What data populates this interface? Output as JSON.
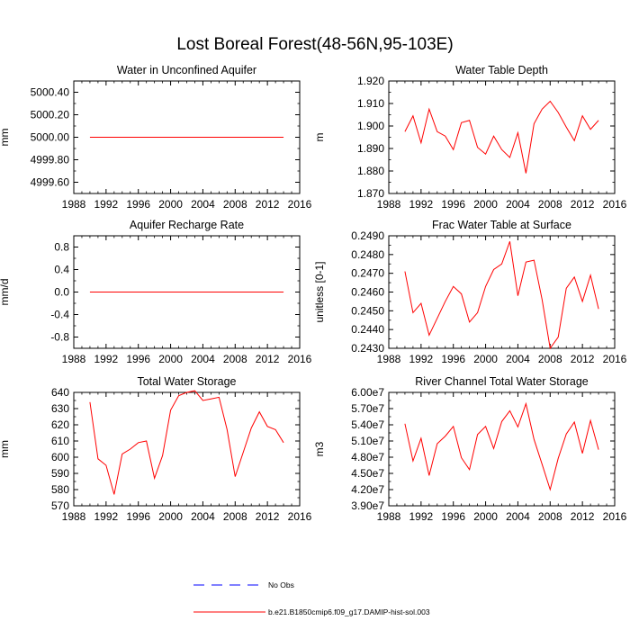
{
  "title": "Lost Boreal Forest(48-56N,95-103E)",
  "legend": {
    "items": [
      {
        "label": "No Obs",
        "color": "#0000ff",
        "style": "dashed"
      },
      {
        "label": "b.e21.B1850cmip6.f09_g17.DAMIP-hist-sol.003",
        "color": "#ff0000",
        "style": "solid"
      }
    ]
  },
  "chart_data": [
    {
      "type": "line",
      "title": "Water in Unconfined Aquifer",
      "xlabel": "",
      "ylabel": "mm",
      "xlim": [
        1988,
        2016
      ],
      "ylim": [
        4999.5,
        5000.5
      ],
      "xticks": [
        1988,
        1992,
        1996,
        2000,
        2004,
        2008,
        2012,
        2016
      ],
      "yticks": [
        4999.6,
        4999.8,
        5000.0,
        5000.2,
        5000.4
      ],
      "ytick_labels": [
        "4999.60",
        "4999.80",
        "5000.00",
        "5000.20",
        "5000.40"
      ],
      "x": [
        1990,
        1991,
        1992,
        1993,
        1994,
        1995,
        1996,
        1997,
        1998,
        1999,
        2000,
        2001,
        2002,
        2003,
        2004,
        2005,
        2006,
        2007,
        2008,
        2009,
        2010,
        2011,
        2012,
        2013,
        2014
      ],
      "series": [
        {
          "color": "#ff0000",
          "values": [
            5000,
            5000,
            5000,
            5000,
            5000,
            5000,
            5000,
            5000,
            5000,
            5000,
            5000,
            5000,
            5000,
            5000,
            5000,
            5000,
            5000,
            5000,
            5000,
            5000,
            5000,
            5000,
            5000,
            5000,
            5000
          ]
        }
      ]
    },
    {
      "type": "line",
      "title": "Water Table Depth",
      "xlabel": "",
      "ylabel": "m",
      "xlim": [
        1988,
        2016
      ],
      "ylim": [
        1.87,
        1.92
      ],
      "xticks": [
        1988,
        1992,
        1996,
        2000,
        2004,
        2008,
        2012,
        2016
      ],
      "yticks": [
        1.87,
        1.88,
        1.89,
        1.9,
        1.91,
        1.92
      ],
      "ytick_labels": [
        "1.870",
        "1.880",
        "1.890",
        "1.900",
        "1.910",
        "1.920"
      ],
      "x": [
        1990,
        1991,
        1992,
        1993,
        1994,
        1995,
        1996,
        1997,
        1998,
        1999,
        2000,
        2001,
        2002,
        2003,
        2004,
        2005,
        2006,
        2007,
        2008,
        2009,
        2010,
        2011,
        2012,
        2013,
        2014
      ],
      "series": [
        {
          "color": "#ff0000",
          "values": [
            1.8975,
            1.9045,
            1.8925,
            1.9075,
            1.8975,
            1.8955,
            1.8895,
            1.9015,
            1.9025,
            1.8905,
            1.8875,
            1.8955,
            1.8895,
            1.886,
            1.897,
            1.879,
            1.901,
            1.9075,
            1.911,
            1.906,
            1.8995,
            1.8935,
            1.9045,
            1.8985,
            1.9025
          ]
        }
      ]
    },
    {
      "type": "line",
      "title": "Aquifer Recharge Rate",
      "xlabel": "",
      "ylabel": "mm/d",
      "xlim": [
        1988,
        2016
      ],
      "ylim": [
        -1.0,
        1.0
      ],
      "xticks": [
        1988,
        1992,
        1996,
        2000,
        2004,
        2008,
        2012,
        2016
      ],
      "yticks": [
        -0.8,
        -0.4,
        0.0,
        0.4,
        0.8
      ],
      "ytick_labels": [
        "-0.8",
        "-0.4",
        "0.0",
        "0.4",
        "0.8"
      ],
      "x": [
        1990,
        1991,
        1992,
        1993,
        1994,
        1995,
        1996,
        1997,
        1998,
        1999,
        2000,
        2001,
        2002,
        2003,
        2004,
        2005,
        2006,
        2007,
        2008,
        2009,
        2010,
        2011,
        2012,
        2013,
        2014
      ],
      "series": [
        {
          "color": "#ff0000",
          "values": [
            0,
            0,
            0,
            0,
            0,
            0,
            0,
            0,
            0,
            0,
            0,
            0,
            0,
            0,
            0,
            0,
            0,
            0,
            0,
            0,
            0,
            0,
            0,
            0,
            0
          ]
        }
      ]
    },
    {
      "type": "line",
      "title": "Frac Water Table at Surface",
      "xlabel": "",
      "ylabel": "unitless [0-1]",
      "xlim": [
        1988,
        2016
      ],
      "ylim": [
        0.243,
        0.249
      ],
      "xticks": [
        1988,
        1992,
        1996,
        2000,
        2004,
        2008,
        2012,
        2016
      ],
      "yticks": [
        0.243,
        0.244,
        0.245,
        0.246,
        0.247,
        0.248,
        0.249
      ],
      "ytick_labels": [
        "0.2430",
        "0.2440",
        "0.2450",
        "0.2460",
        "0.2470",
        "0.2480",
        "0.2490"
      ],
      "x": [
        1990,
        1991,
        1992,
        1993,
        1994,
        1995,
        1996,
        1997,
        1998,
        1999,
        2000,
        2001,
        2002,
        2003,
        2004,
        2005,
        2006,
        2007,
        2008,
        2009,
        2010,
        2011,
        2012,
        2013,
        2014
      ],
      "series": [
        {
          "color": "#ff0000",
          "values": [
            0.2471,
            0.2449,
            0.2454,
            0.2437,
            0.2446,
            0.2455,
            0.2463,
            0.2459,
            0.2444,
            0.2449,
            0.2463,
            0.2472,
            0.2475,
            0.2487,
            0.2458,
            0.2476,
            0.2477,
            0.2456,
            0.243,
            0.2436,
            0.2462,
            0.2468,
            0.2455,
            0.2469,
            0.2451
          ]
        }
      ]
    },
    {
      "type": "line",
      "title": "Total Water Storage",
      "xlabel": "",
      "ylabel": "mm",
      "xlim": [
        1988,
        2016
      ],
      "ylim": [
        570,
        640
      ],
      "xticks": [
        1988,
        1992,
        1996,
        2000,
        2004,
        2008,
        2012,
        2016
      ],
      "yticks": [
        570,
        580,
        590,
        600,
        610,
        620,
        630,
        640
      ],
      "ytick_labels": [
        "570",
        "580",
        "590",
        "600",
        "610",
        "620",
        "630",
        "640"
      ],
      "x": [
        1990,
        1991,
        1992,
        1993,
        1994,
        1995,
        1996,
        1997,
        1998,
        1999,
        2000,
        2001,
        2002,
        2003,
        2004,
        2005,
        2006,
        2007,
        2008,
        2009,
        2010,
        2011,
        2012,
        2013,
        2014
      ],
      "series": [
        {
          "color": "#ff0000",
          "values": [
            634,
            599,
            595,
            577,
            602,
            605,
            609,
            610,
            587,
            601,
            629,
            638,
            640,
            641,
            635,
            636,
            637,
            617,
            588,
            603,
            618,
            628,
            619,
            617,
            609
          ]
        }
      ]
    },
    {
      "type": "line",
      "title": "River Channel Total Water Storage",
      "xlabel": "",
      "ylabel": "m3",
      "xlim": [
        1988,
        2016
      ],
      "ylim": [
        39000000,
        60000000
      ],
      "xticks": [
        1988,
        1992,
        1996,
        2000,
        2004,
        2008,
        2012,
        2016
      ],
      "yticks": [
        39000000,
        42000000,
        45000000,
        48000000,
        51000000,
        54000000,
        57000000,
        60000000
      ],
      "ytick_labels": [
        "3.90e7",
        "4.20e7",
        "4.50e7",
        "4.80e7",
        "5.10e7",
        "5.40e7",
        "5.70e7",
        "6.00e7"
      ],
      "x": [
        1990,
        1991,
        1992,
        1993,
        1994,
        1995,
        1996,
        1997,
        1998,
        1999,
        2000,
        2001,
        2002,
        2003,
        2004,
        2005,
        2006,
        2007,
        2008,
        2009,
        2010,
        2011,
        2012,
        2013,
        2014
      ],
      "series": [
        {
          "color": "#ff0000",
          "values": [
            54200000,
            47300000,
            51500000,
            44600000,
            50500000,
            51900000,
            53700000,
            47900000,
            45700000,
            52200000,
            53700000,
            49600000,
            54600000,
            56600000,
            53600000,
            57900000,
            51300000,
            46700000,
            42000000,
            47800000,
            52300000,
            54500000,
            48700000,
            54800000,
            49400000
          ]
        }
      ]
    }
  ]
}
